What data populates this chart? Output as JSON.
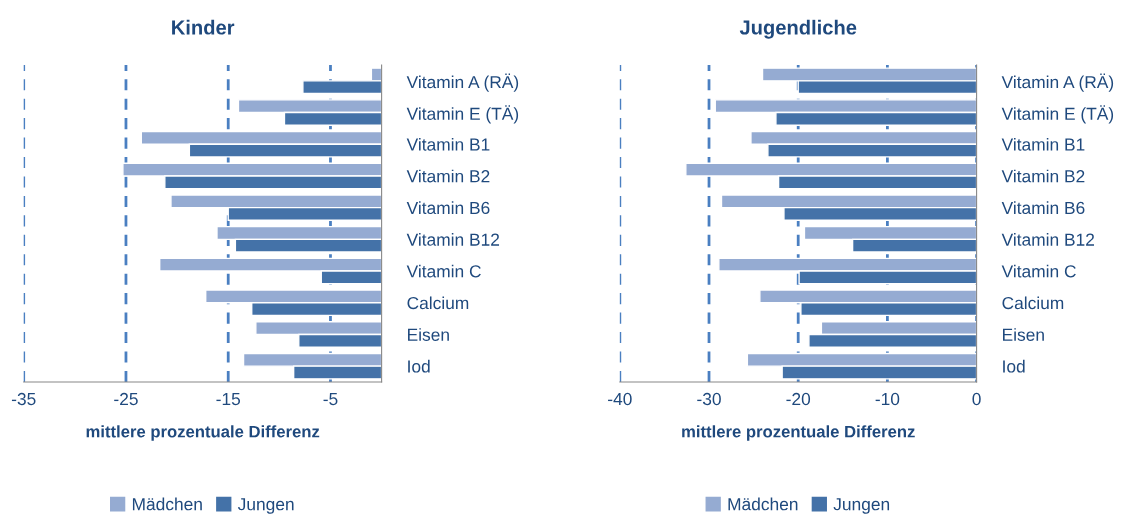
{
  "chart_data": [
    {
      "type": "bar",
      "orientation": "horizontal",
      "title": "Kinder",
      "xlabel": "mittlere prozentuale Differenz",
      "categories": [
        "Vitamin A (RÄ)",
        "Vitamin E (TÄ)",
        "Vitamin B1",
        "Vitamin B2",
        "Vitamin B6",
        "Vitamin B12",
        "Vitamin C",
        "Calcium",
        "Eisen",
        "Iod"
      ],
      "series": [
        {
          "name": "Mädchen",
          "color": "#95abd2",
          "values": [
            -1.0,
            -14.0,
            -23.5,
            -25.3,
            -20.6,
            -16.1,
            -21.7,
            -17.2,
            -12.3,
            -13.5
          ]
        },
        {
          "name": "Jungen",
          "color": "#4472a8",
          "values": [
            -7.7,
            -9.5,
            -18.8,
            -21.2,
            -15.0,
            -14.3,
            -5.9,
            -12.7,
            -8.1,
            -8.6
          ]
        }
      ],
      "xlim": [
        -35,
        0
      ],
      "xticks": [
        -35,
        -25,
        -15,
        -5
      ],
      "grid": "x",
      "legend": "bottom"
    },
    {
      "type": "bar",
      "orientation": "horizontal",
      "title": "Jugendliche",
      "xlabel": "mittlere prozentuale Differenz",
      "categories": [
        "Vitamin A (RÄ)",
        "Vitamin E (TÄ)",
        "Vitamin B1",
        "Vitamin B2",
        "Vitamin B6",
        "Vitamin B12",
        "Vitamin C",
        "Calcium",
        "Eisen",
        "Iod"
      ],
      "series": [
        {
          "name": "Mädchen",
          "color": "#95abd2",
          "values": [
            -24.0,
            -29.3,
            -25.3,
            -32.6,
            -28.6,
            -19.3,
            -28.9,
            -24.3,
            -17.4,
            -25.7
          ]
        },
        {
          "name": "Jungen",
          "color": "#4472a8",
          "values": [
            -20.0,
            -22.5,
            -23.4,
            -22.2,
            -21.6,
            -13.9,
            -19.9,
            -19.7,
            -18.8,
            -21.8
          ]
        }
      ],
      "xlim": [
        -40,
        0
      ],
      "xticks": [
        -40,
        -30,
        -20,
        -10,
        0
      ],
      "grid": "x",
      "legend": "bottom"
    }
  ]
}
